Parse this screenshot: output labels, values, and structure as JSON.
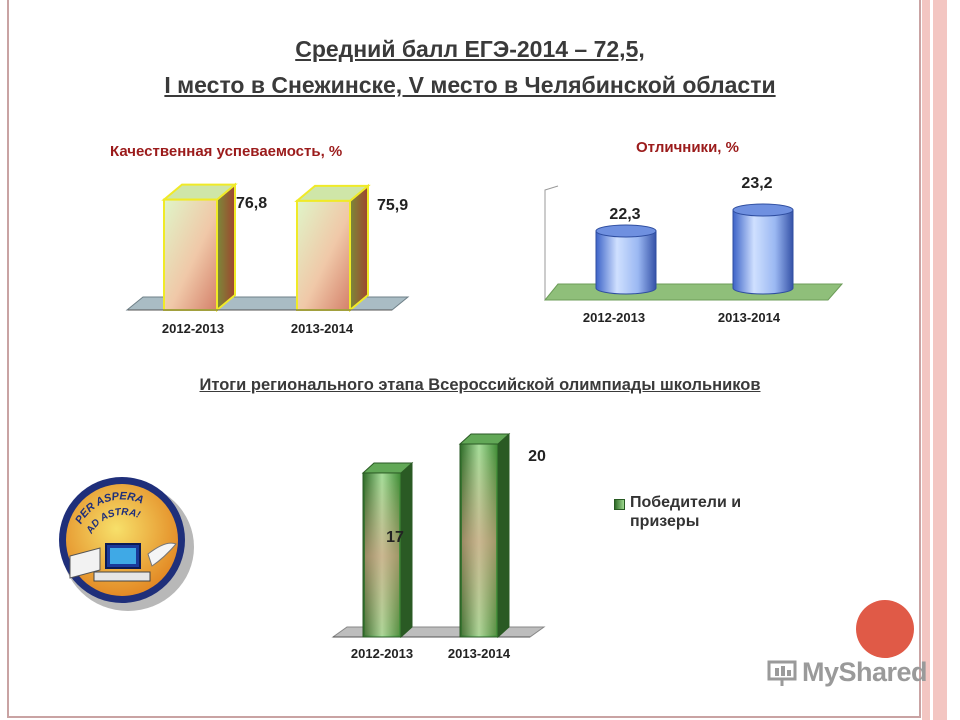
{
  "slide": {
    "title_line1": "Средний балл ЕГЭ-2014 – 72,5,",
    "title_line2": "I место в Снежинске, V место в Челябинской области",
    "section_title": "Итоги регионального этапа Всероссийской олимпиады школьников",
    "watermark": "MyShared",
    "logo_text_line1": "PER ASPERA",
    "logo_text_line2": "AD ASTRA!"
  },
  "colors": {
    "chart1_bar": "#e8b9a0",
    "chart1_border": "#f0ea27",
    "chart2_bar": "#8fb4f0",
    "chart2_floor": "#8fbf7a",
    "chart3_bar": "#3f8a34",
    "accent_pink": "#e05a47",
    "subtitle_red": "#9b1b1b"
  },
  "chart_data": [
    {
      "type": "bar",
      "title": "Качественная успеваемость, %",
      "categories": [
        "2012-2013",
        "2013-2014"
      ],
      "values": [
        76.8,
        75.9
      ],
      "value_labels": [
        "76,8",
        "75,9"
      ],
      "ylim": [
        0,
        80
      ],
      "style": "3d-box"
    },
    {
      "type": "bar",
      "title": "Отличники, %",
      "categories": [
        "2012-2013",
        "2013-2014"
      ],
      "values": [
        22.3,
        23.2
      ],
      "value_labels": [
        "22,3",
        "23,2"
      ],
      "ylim": [
        21.4,
        23.2
      ],
      "style": "3d-cylinder"
    },
    {
      "type": "bar",
      "title": "",
      "categories": [
        "2012-2013",
        "2013-2014"
      ],
      "series": [
        {
          "name": "Победители и призеры",
          "values": [
            17,
            20
          ]
        }
      ],
      "value_labels": [
        "17",
        "20"
      ],
      "ylim": [
        0,
        20
      ],
      "legend": "right",
      "style": "3d-box"
    }
  ]
}
